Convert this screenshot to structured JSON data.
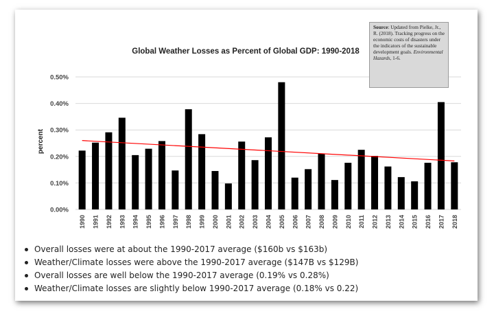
{
  "source_note": {
    "label": "Source",
    "text_before": ": Updated from Pielke, Jr., R. (2018). Tracking progress on the economic costs of disasters under the indicators of the sustainable development goals. ",
    "journal": "Environmental Hazards",
    "text_after": ", 1-6."
  },
  "bullets": [
    "Overall losses were at about the 1990-2017 average ($160b vs $163b)",
    "Weather/Climate losses were above the 1990-2017 average ($147B vs $129B)",
    "Overall losses are well below the 1990-2017 average (0.19% vs 0.28%)",
    "Weather/Climate losses are slightly below 1990-2017 average (0.18% vs 0.22)"
  ],
  "colors": {
    "bars": "#000000",
    "trend": "#ff0000",
    "grid": "#d9d9d9"
  },
  "chart_data": {
    "type": "bar",
    "title": "Global Weather Losses as Percent of Global GDP: 1990-2018",
    "xlabel": "",
    "ylabel": "percent",
    "ylim": [
      0,
      0.5
    ],
    "yticks": [
      0,
      0.1,
      0.2,
      0.3,
      0.4,
      0.5
    ],
    "ytick_labels": [
      "0.00%",
      "0.10%",
      "0.20%",
      "0.30%",
      "0.40%",
      "0.50%"
    ],
    "grid": true,
    "categories": [
      "1990",
      "1991",
      "1992",
      "1993",
      "1994",
      "1995",
      "1996",
      "1997",
      "1998",
      "1999",
      "2000",
      "2001",
      "2002",
      "2003",
      "2004",
      "2005",
      "2006",
      "2007",
      "2008",
      "2009",
      "2010",
      "2011",
      "2012",
      "2013",
      "2014",
      "2015",
      "2016",
      "2017",
      "2018"
    ],
    "values": [
      0.222,
      0.252,
      0.291,
      0.346,
      0.205,
      0.229,
      0.258,
      0.147,
      0.378,
      0.284,
      0.145,
      0.098,
      0.256,
      0.186,
      0.272,
      0.48,
      0.12,
      0.152,
      0.21,
      0.111,
      0.176,
      0.225,
      0.202,
      0.162,
      0.122,
      0.106,
      0.176,
      0.405,
      0.178
    ],
    "trendline": {
      "type": "linear",
      "start_value": 0.26,
      "end_value": 0.183
    }
  }
}
